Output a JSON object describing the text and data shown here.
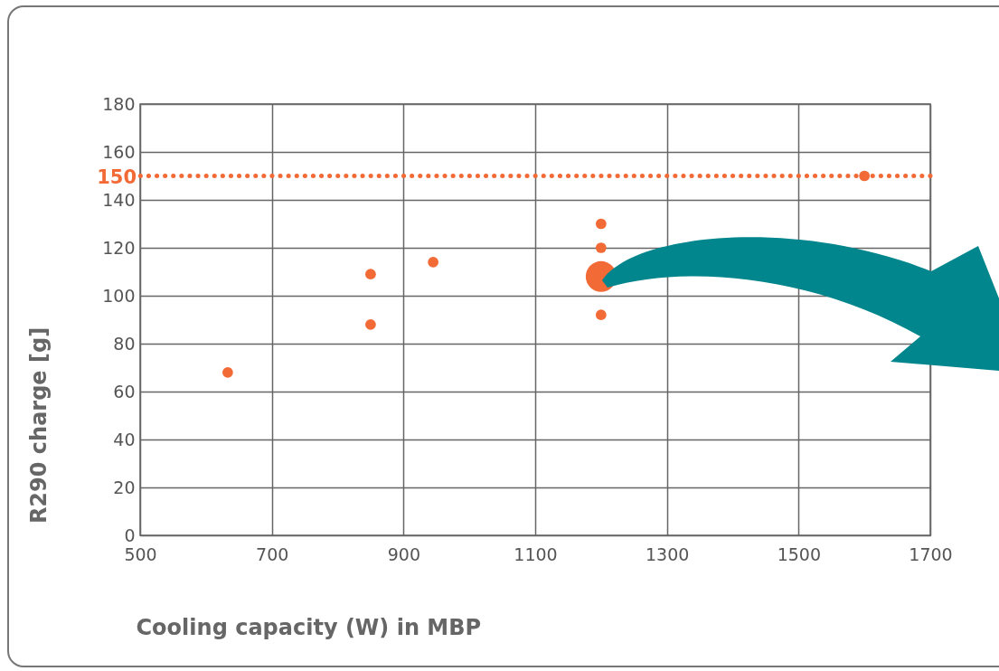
{
  "chart_data": {
    "type": "bubble",
    "xlabel": "Cooling capacity (W) in MBP",
    "ylabel": "R290 charge [g]",
    "x": [
      633,
      850,
      850,
      945,
      1200,
      1200,
      1200,
      1200,
      1600
    ],
    "values": [
      68,
      109,
      88,
      114,
      130,
      120,
      108,
      92,
      150
    ],
    "sizes": [
      0.12,
      0.12,
      0.12,
      0.12,
      0.12,
      0.12,
      1,
      0.12,
      0.12
    ],
    "color": "#f26a36",
    "marker": "circle",
    "xlim": [
      500,
      1700
    ],
    "xticks": [
      500,
      700,
      900,
      1100,
      1300,
      1500,
      1700
    ],
    "ylim": [
      0,
      180
    ],
    "yticks": [
      0,
      20,
      40,
      60,
      80,
      100,
      120,
      140,
      160,
      180
    ],
    "grid": true,
    "legend": false,
    "ref_lines": [
      {
        "axis": "y",
        "value": 150,
        "label": "150",
        "color": "#f26a36",
        "line_style": "dotted"
      }
    ]
  }
}
